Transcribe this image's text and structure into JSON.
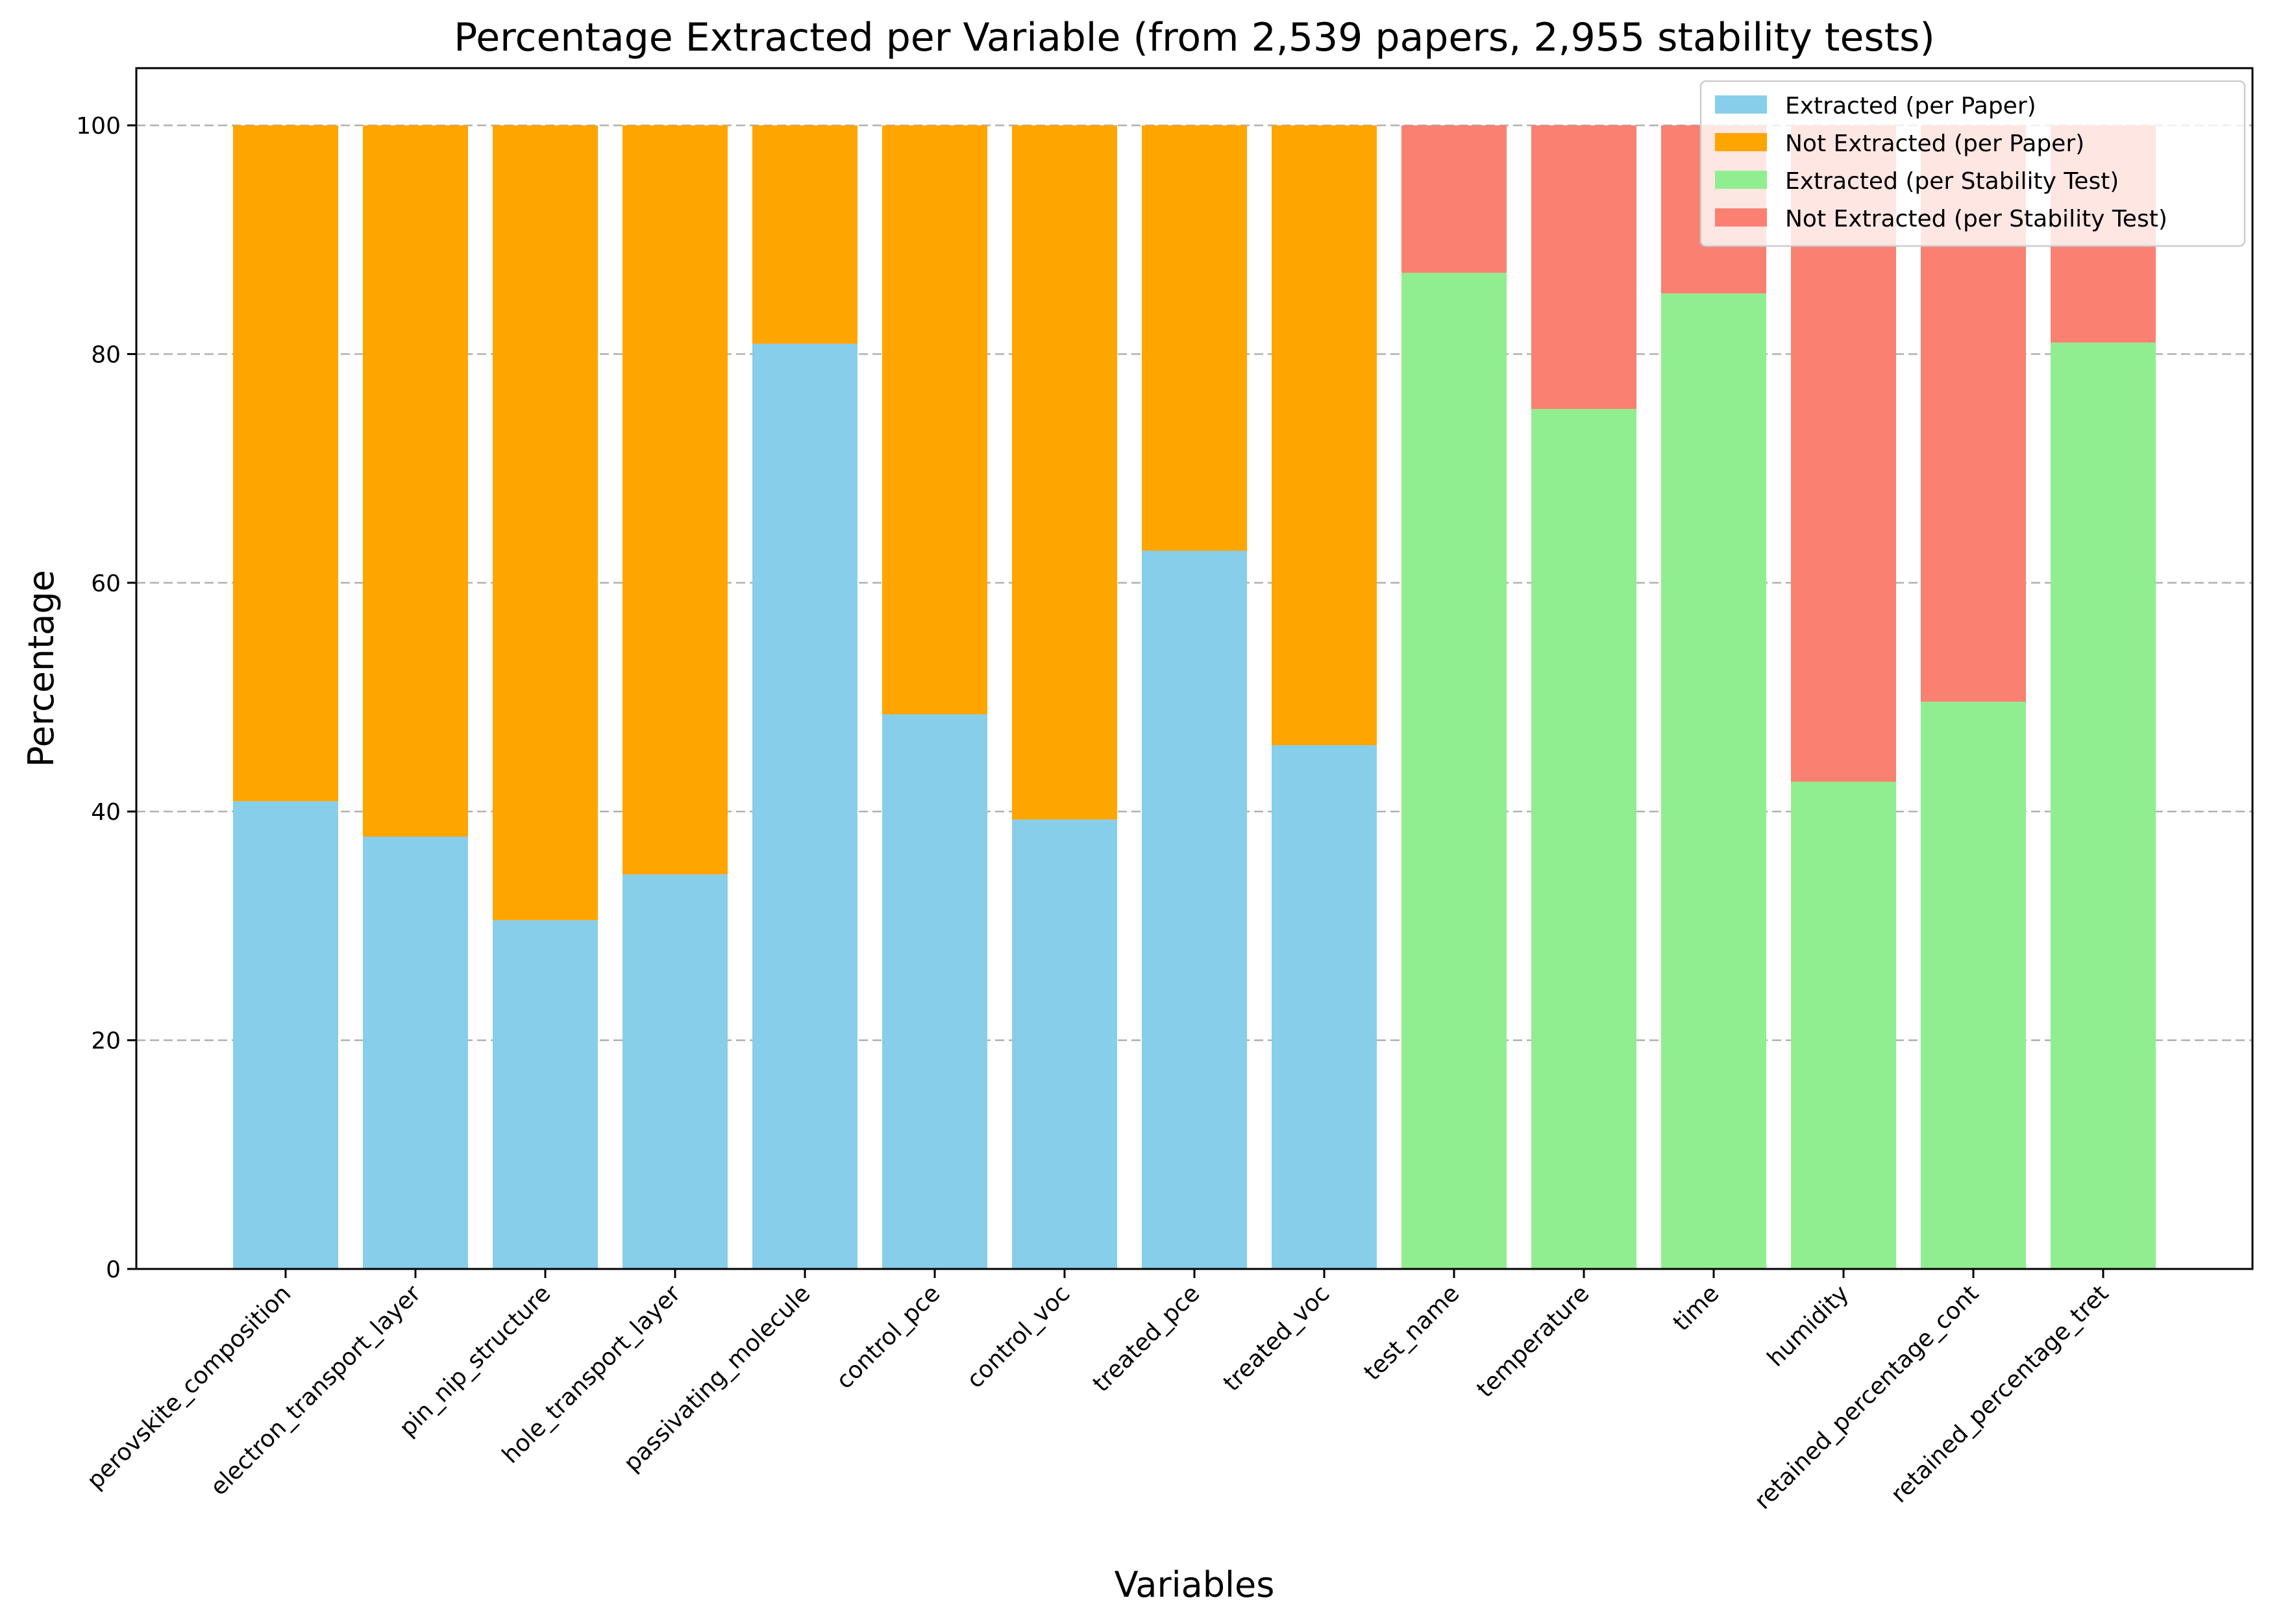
{
  "chart_data": {
    "type": "bar",
    "stacked": true,
    "title": "Percentage Extracted per Variable (from 2,539 papers, 2,955 stability tests)",
    "xlabel": "Variables",
    "ylabel": "Percentage",
    "ylim": [
      0,
      105
    ],
    "yticks": [
      0,
      20,
      40,
      60,
      80,
      100
    ],
    "grid": "y-dashed",
    "legend_position": "top-right",
    "categories": [
      "perovskite_composition",
      "electron_transport_layer",
      "pin_nip_structure",
      "hole_transport_layer",
      "passivating_molecule",
      "control_pce",
      "control_voc",
      "treated_pce",
      "treated_voc",
      "test_name",
      "temperature",
      "time",
      "humidity",
      "retained_percentage_cont",
      "retained_percentage_tret"
    ],
    "groups": [
      {
        "basis": "per Paper",
        "start_index": 0,
        "count": 9,
        "extracted_color": "#87CEEB",
        "not_extracted_color": "#FFA500"
      },
      {
        "basis": "per Stability Test",
        "start_index": 9,
        "count": 6,
        "extracted_color": "#90EE90",
        "not_extracted_color": "#FA8072"
      }
    ],
    "extracted": [
      40.9,
      37.8,
      30.5,
      34.5,
      80.9,
      48.5,
      39.3,
      62.8,
      45.8,
      87.1,
      75.2,
      85.3,
      42.6,
      49.6,
      81.0
    ],
    "not_extracted": [
      59.1,
      62.2,
      69.5,
      65.5,
      19.1,
      51.5,
      60.7,
      37.2,
      54.2,
      12.9,
      24.8,
      14.7,
      57.4,
      50.4,
      19.0
    ],
    "legend": [
      {
        "label": "Extracted (per Paper)",
        "color": "#87CEEB"
      },
      {
        "label": "Not Extracted (per Paper)",
        "color": "#FFA500"
      },
      {
        "label": "Extracted (per Stability Test)",
        "color": "#90EE90"
      },
      {
        "label": "Not Extracted (per Stability Test)",
        "color": "#FA8072"
      }
    ]
  }
}
